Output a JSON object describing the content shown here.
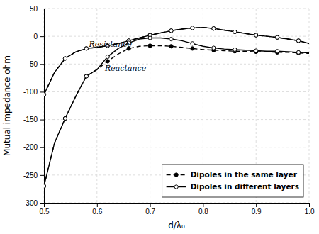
{
  "chart_data": {
    "type": "line",
    "x": [
      0.5,
      0.52,
      0.54,
      0.56,
      0.58,
      0.6,
      0.62,
      0.64,
      0.66,
      0.68,
      0.7,
      0.72,
      0.74,
      0.76,
      0.78,
      0.8,
      0.82,
      0.84,
      0.86,
      0.88,
      0.9,
      0.92,
      0.94,
      0.96,
      0.98,
      1.0
    ],
    "series": [
      {
        "name": "Dipoles in the same layer",
        "color": "#000000",
        "line_style": "dashed",
        "marker": "circle",
        "values": [
          -105,
          -65,
          -40,
          -28,
          -22,
          -20,
          -17,
          -13,
          -8,
          -3,
          2,
          6,
          10,
          13,
          15,
          16,
          14,
          11,
          8,
          5,
          2,
          0,
          -2,
          -5,
          -8,
          -13
        ]
      },
      {
        "color": "#000000",
        "line_style": "dashed",
        "marker": "circle",
        "values": [
          -270,
          -192,
          -148,
          -108,
          -72,
          -60,
          -45,
          -32,
          -22,
          -18,
          -17,
          -17,
          -18,
          -20,
          -22,
          -24,
          -25,
          -26,
          -27,
          -27,
          -28,
          -28,
          -29,
          -29,
          -30,
          -31
        ]
      },
      {
        "name": "Dipoles in different layers",
        "color": "#000000",
        "line_style": "solid",
        "marker": "open-circle",
        "values": [
          -105,
          -65,
          -40,
          -28,
          -22,
          -20,
          -17,
          -13,
          -8,
          -3,
          2,
          6,
          10,
          13,
          15,
          16,
          14,
          11,
          8,
          5,
          2,
          0,
          -2,
          -5,
          -8,
          -13
        ]
      },
      {
        "color": "#000000",
        "line_style": "solid",
        "marker": "open-circle",
        "values": [
          -270,
          -192,
          -148,
          -108,
          -72,
          -60,
          -37,
          -22,
          -12,
          -5,
          -3,
          -3,
          -5,
          -8,
          -13,
          -18,
          -21,
          -23,
          -24,
          -25,
          -26,
          -27,
          -27,
          -28,
          -29,
          -30
        ]
      }
    ],
    "annotations": [
      {
        "text": "Resistance",
        "x": 0.585,
        "y": -14
      },
      {
        "text": "Reactance",
        "x": 0.615,
        "y": -58
      }
    ],
    "xlabel": "d/λ₀",
    "ylabel": "Mutual impedance ohm",
    "xlim": [
      0.5,
      1.0
    ],
    "ylim": [
      -300,
      50
    ],
    "xticks": [
      0.5,
      0.6,
      0.7,
      0.8,
      0.9,
      {
        "value": 1.0,
        "label": "1.0"
      }
    ],
    "yticks": [
      50,
      0,
      -50,
      -100,
      -150,
      -200,
      -250,
      -300
    ],
    "grid": true,
    "legend": "lower right"
  }
}
